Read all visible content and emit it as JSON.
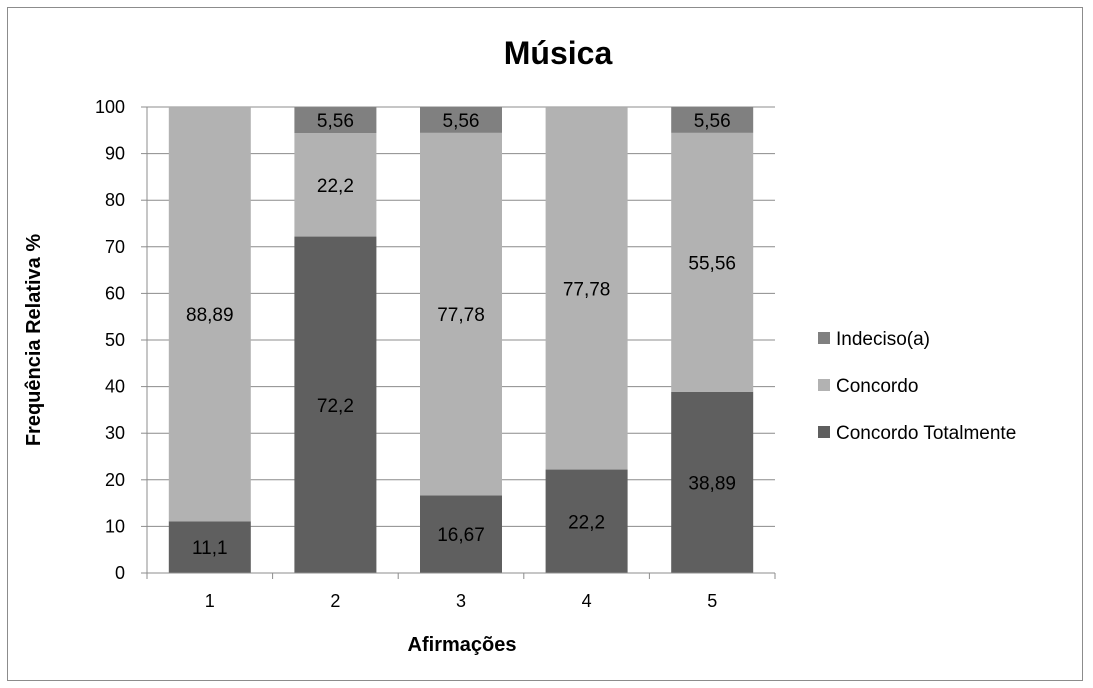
{
  "chart_data": {
    "type": "bar",
    "stacked": true,
    "title": "Música",
    "xlabel": "Afirmações",
    "ylabel": "Frequência Relativa %",
    "categories": [
      "1",
      "2",
      "3",
      "4",
      "5"
    ],
    "ylim": [
      0,
      100
    ],
    "yticks": [
      "0",
      "10",
      "20",
      "30",
      "40",
      "50",
      "60",
      "70",
      "80",
      "90",
      "100"
    ],
    "grid": true,
    "legend_position": "right",
    "series": [
      {
        "name": "Concordo Totalmente",
        "color": "#5f5f5f",
        "values": [
          11.1,
          72.2,
          16.67,
          22.2,
          38.89
        ],
        "labels": [
          "11,1",
          "72,2",
          "16,67",
          "22,2",
          "38,89"
        ]
      },
      {
        "name": "Concordo",
        "color": "#b2b2b2",
        "values": [
          88.89,
          22.2,
          77.78,
          77.78,
          55.56
        ],
        "labels": [
          "88,89",
          "22,2",
          "77,78",
          "77,78",
          "55,56"
        ]
      },
      {
        "name": "Indeciso(a)",
        "color": "#808080",
        "values": [
          0,
          5.56,
          5.56,
          0,
          5.56
        ],
        "labels": [
          "",
          "5,56",
          "5,56",
          "",
          "5,56"
        ]
      }
    ],
    "legend_order": [
      "Indeciso(a)",
      "Concordo",
      "Concordo Totalmente"
    ]
  }
}
